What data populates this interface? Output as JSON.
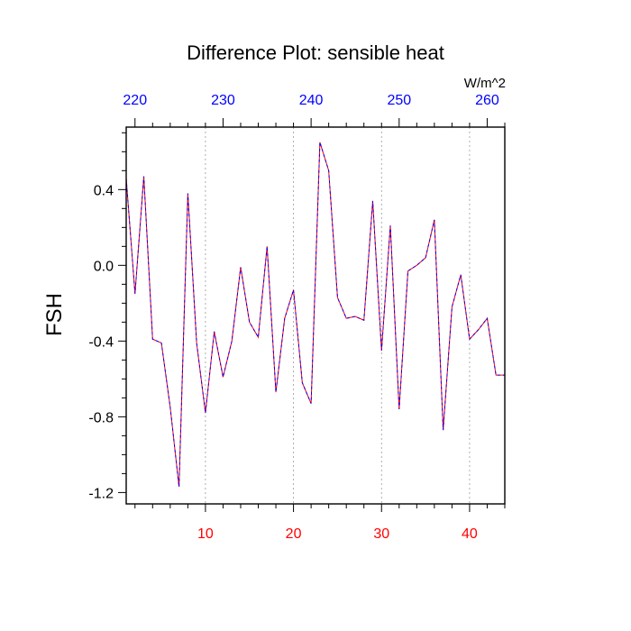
{
  "chart_data": {
    "type": "line",
    "title": "Difference Plot: sensible heat",
    "ylabel": "FSH",
    "units": "W/m^2",
    "x": [
      1,
      2,
      3,
      4,
      5,
      6,
      7,
      8,
      9,
      10,
      11,
      12,
      13,
      14,
      15,
      16,
      17,
      18,
      19,
      20,
      21,
      22,
      23,
      24,
      25,
      26,
      27,
      28,
      29,
      30,
      31,
      32,
      33,
      34,
      35,
      36,
      37,
      38,
      39,
      40,
      41,
      42,
      43,
      44
    ],
    "series": [
      {
        "values": [
          0.46,
          -0.15,
          0.47,
          -0.39,
          -0.41,
          -0.75,
          -1.17,
          0.38,
          -0.41,
          -0.78,
          -0.35,
          -0.59,
          -0.4,
          -0.01,
          -0.3,
          -0.38,
          0.1,
          -0.67,
          -0.28,
          -0.13,
          -0.62,
          -0.73,
          0.65,
          0.5,
          -0.17,
          -0.28,
          -0.27,
          -0.29,
          0.34,
          -0.45,
          0.21,
          -0.76,
          -0.03,
          0.0,
          0.04,
          0.24,
          -0.87,
          -0.22,
          -0.05,
          -0.39,
          -0.34,
          -0.28,
          -0.58,
          -0.58
        ]
      }
    ],
    "line_colors": [
      "#ff0000",
      "#0000ff"
    ],
    "xlim": [
      1,
      44
    ],
    "ylim": [
      -1.26,
      0.73
    ],
    "xticks_bottom": [
      10,
      20,
      30,
      40
    ],
    "xtick_labels_bottom": [
      "10",
      "20",
      "30",
      "40"
    ],
    "bottom_tick_color": "#ff0000",
    "xticks_top": [
      220,
      230,
      240,
      250,
      260
    ],
    "xtick_labels_top": [
      "220",
      "230",
      "240",
      "250",
      "260"
    ],
    "top_tick_color": "#0000ff",
    "top_axis_range": [
      219,
      262
    ],
    "yticks": [
      0.4,
      0.0,
      -0.4,
      -0.8,
      -1.2
    ],
    "ytick_labels": [
      "0.4",
      "0.0",
      "-0.4",
      "-0.8",
      "-1.2"
    ],
    "grid": "vertical-dotted"
  }
}
